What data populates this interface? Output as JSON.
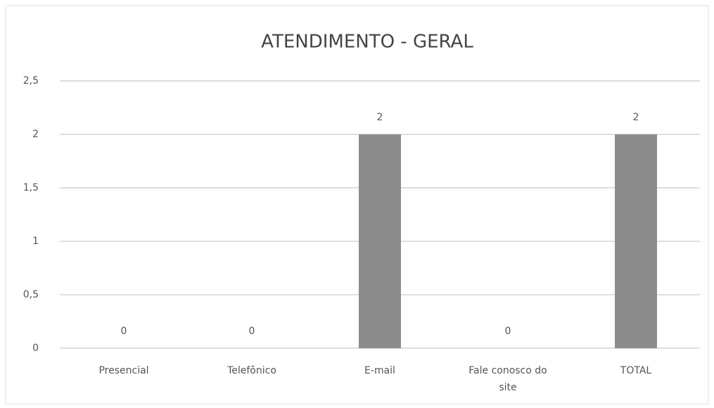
{
  "chart_data": {
    "type": "bar",
    "title": "ATENDIMENTO - GERAL",
    "categories": [
      "Presencial",
      "Telefônico",
      "E-mail",
      "Fale conosco do site",
      "TOTAL"
    ],
    "values": [
      0,
      0,
      2,
      0,
      2
    ],
    "color": "#8c8c8c",
    "ylim": [
      0,
      2.5
    ],
    "yticks": [
      0,
      {
        "value": 0.5,
        "label": "0,5"
      },
      1,
      {
        "value": 1.5,
        "label": "1,5"
      },
      2,
      {
        "value": 2.5,
        "label": "2,5"
      }
    ],
    "grid": true
  }
}
